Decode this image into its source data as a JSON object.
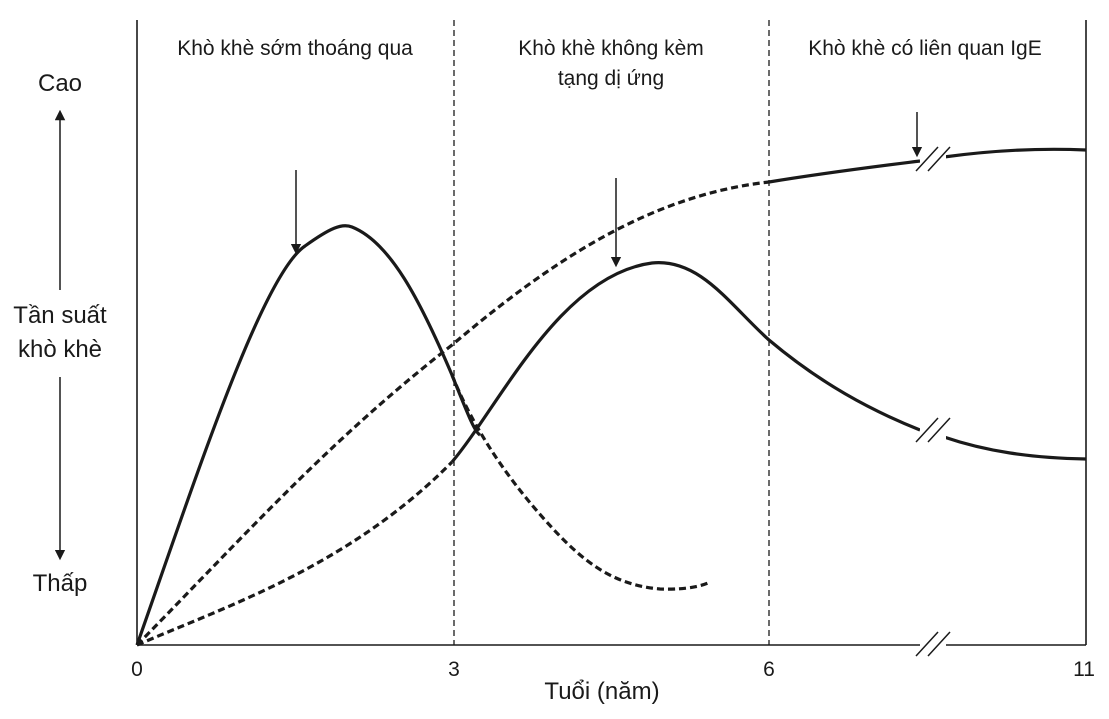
{
  "chart_data": {
    "type": "line",
    "y_axis": {
      "label_lines": [
        "Tần suất",
        "khò khè"
      ],
      "high_label": "Cao",
      "low_label": "Thấp"
    },
    "x_axis": {
      "label": "Tuổi (năm)",
      "ticks": [
        "0",
        "3",
        "6",
        "11"
      ],
      "break_between": [
        "6",
        "11"
      ]
    },
    "phases": [
      {
        "lines": [
          "Khò khè sớm thoáng qua"
        ]
      },
      {
        "lines": [
          "Khò khè không kèm",
          "tạng dị ứng"
        ]
      },
      {
        "lines": [
          "Khò khè có liên quan IgE"
        ]
      }
    ],
    "series": [
      {
        "style": "solid",
        "peak_age": 2.0,
        "peak_level": 0.8
      },
      {
        "style": "dashed",
        "trough_age": 5.0,
        "trough_level": 0.11
      },
      {
        "style": "solid",
        "peak_age": 4.9,
        "peak_level": 0.73,
        "end_level": 0.35
      },
      {
        "style": "dashed",
        "end_level": 0.94
      }
    ]
  }
}
